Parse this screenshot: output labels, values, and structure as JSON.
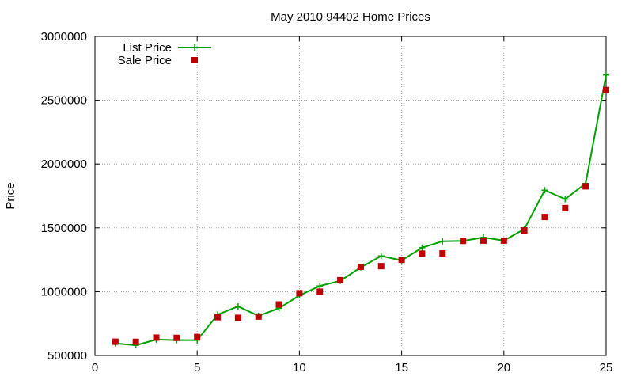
{
  "chart_data": {
    "type": "line",
    "title": "May 2010 94402 Home Prices",
    "xlabel": "",
    "ylabel": "Price",
    "xlim": [
      0,
      25
    ],
    "ylim": [
      500000,
      3000000
    ],
    "x_ticks": [
      "0",
      "5",
      "10",
      "15",
      "20",
      "25"
    ],
    "y_ticks": [
      "500000",
      "1000000",
      "1500000",
      "2000000",
      "2500000",
      "3000000"
    ],
    "grid": true,
    "legend_position": "top-left",
    "x": [
      1,
      2,
      3,
      4,
      5,
      6,
      7,
      8,
      9,
      10,
      11,
      12,
      13,
      14,
      15,
      16,
      17,
      18,
      19,
      20,
      21,
      22,
      23,
      24,
      25
    ],
    "series": [
      {
        "name": "List Price",
        "style": "line-plus",
        "color": "#00a000",
        "values": [
          595000,
          580000,
          625000,
          620000,
          620000,
          820000,
          885000,
          810000,
          870000,
          970000,
          1045000,
          1085000,
          1190000,
          1280000,
          1245000,
          1345000,
          1395000,
          1398000,
          1425000,
          1400000,
          1490000,
          1795000,
          1725000,
          1848000,
          2698000
        ]
      },
      {
        "name": "Sale Price",
        "style": "square",
        "color": "#c00000",
        "values": [
          608000,
          607000,
          640000,
          638000,
          645000,
          800000,
          795000,
          805000,
          900000,
          988000,
          1000000,
          1090000,
          1195000,
          1200000,
          1250000,
          1298000,
          1300000,
          1398000,
          1400000,
          1400000,
          1480000,
          1585000,
          1655000,
          1825000,
          2580000
        ]
      }
    ]
  }
}
